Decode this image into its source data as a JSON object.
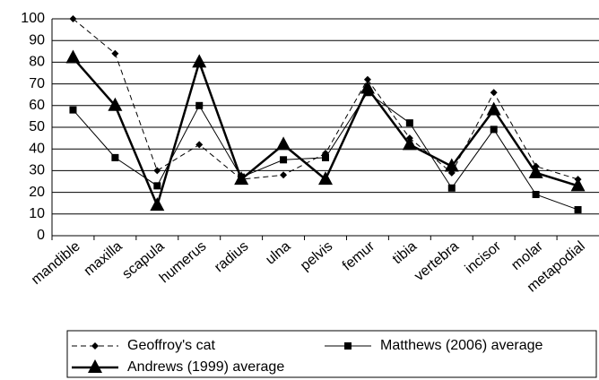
{
  "chart_data": {
    "type": "line",
    "categories": [
      "mandible",
      "maxilla",
      "scapula",
      "humerus",
      "radius",
      "ulna",
      "pelvis",
      "femur",
      "tibia",
      "vertebra",
      "incisor",
      "molar",
      "metapodial"
    ],
    "series": [
      {
        "name": "Geoffroy's cat",
        "color": "#000000",
        "marker": "diamond",
        "dash": true,
        "line_width": 1,
        "values": [
          100,
          84,
          30,
          42,
          26,
          28,
          38,
          72,
          45,
          29,
          66,
          32,
          26
        ]
      },
      {
        "name": "Matthews (2006) average",
        "color": "#000000",
        "marker": "square",
        "dash": false,
        "line_width": 1,
        "values": [
          58,
          36,
          23,
          60,
          27,
          35,
          36,
          66,
          52,
          22,
          49,
          19,
          12
        ]
      },
      {
        "name": "Andrews (1999) average",
        "color": "#000000",
        "marker": "triangle",
        "dash": false,
        "line_width": 2.5,
        "values": [
          82,
          60,
          14,
          80,
          26,
          42,
          26,
          68,
          42,
          32,
          58,
          29,
          23
        ]
      }
    ],
    "ylim": [
      0,
      100
    ],
    "yticks": [
      0,
      10,
      20,
      30,
      40,
      50,
      60,
      70,
      80,
      90,
      100
    ],
    "grid": true
  }
}
